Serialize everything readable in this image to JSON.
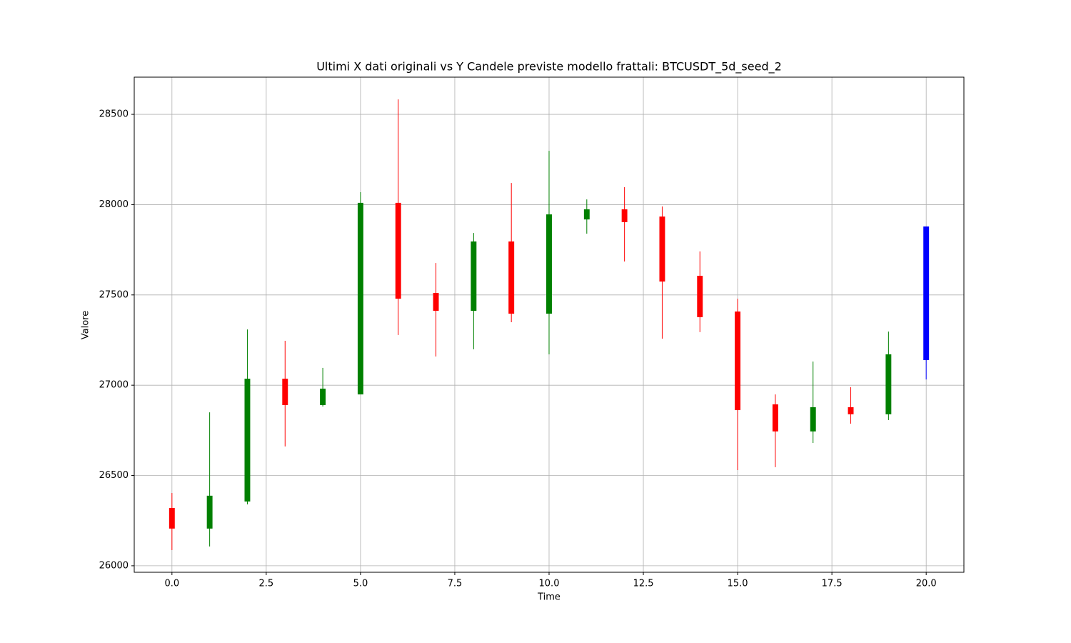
{
  "chart_data": {
    "type": "candlestick",
    "title": "Ultimi X dati originali vs Y Candele previste modello frattali: BTCUSDT_5d_seed_2",
    "x_label": "Time",
    "y_label": "Valore",
    "x": [
      0,
      1,
      2,
      3,
      4,
      5,
      6,
      7,
      8,
      9,
      10,
      11,
      12,
      13,
      14,
      15,
      16,
      17,
      18,
      19,
      20
    ],
    "open": [
      26320,
      26206,
      26356,
      27036,
      26890,
      26949,
      28010,
      27511,
      27412,
      27796,
      27396,
      27918,
      27974,
      27934,
      27606,
      27408,
      26894,
      26744,
      26878,
      26839,
      27139
    ],
    "high": [
      26403,
      26850,
      27309,
      27246,
      27096,
      28069,
      28583,
      27677,
      27843,
      28120,
      28298,
      28029,
      28097,
      27990,
      27741,
      27479,
      26949,
      27131,
      26989,
      27297,
      27879
    ],
    "low": [
      26087,
      26107,
      26340,
      26661,
      26882,
      26949,
      27278,
      27159,
      27199,
      27349,
      27171,
      27839,
      27685,
      27258,
      27294,
      26530,
      26546,
      26680,
      26787,
      26807,
      27032
    ],
    "close": [
      26206,
      26388,
      27036,
      26890,
      26981,
      28010,
      27479,
      27412,
      27796,
      27396,
      27946,
      27974,
      27903,
      27574,
      27377,
      26862,
      26744,
      26878,
      26839,
      27171,
      27879
    ],
    "colors": [
      "red",
      "green",
      "green",
      "red",
      "green",
      "green",
      "red",
      "red",
      "green",
      "red",
      "green",
      "green",
      "red",
      "red",
      "red",
      "red",
      "red",
      "green",
      "red",
      "green",
      "blue"
    ],
    "xlim": [
      -1,
      21
    ],
    "ylim": [
      25964,
      28706
    ],
    "xticks": [
      {
        "value": 0,
        "label": "0.0"
      },
      2.5,
      {
        "value": 5,
        "label": "5.0"
      },
      7.5,
      {
        "value": 10,
        "label": "10.0"
      },
      12.5,
      {
        "value": 15,
        "label": "15.0"
      },
      17.5,
      {
        "value": 20,
        "label": "20.0"
      }
    ],
    "yticks": [
      26000,
      26500,
      27000,
      27500,
      28000,
      28500
    ],
    "grid": true
  }
}
